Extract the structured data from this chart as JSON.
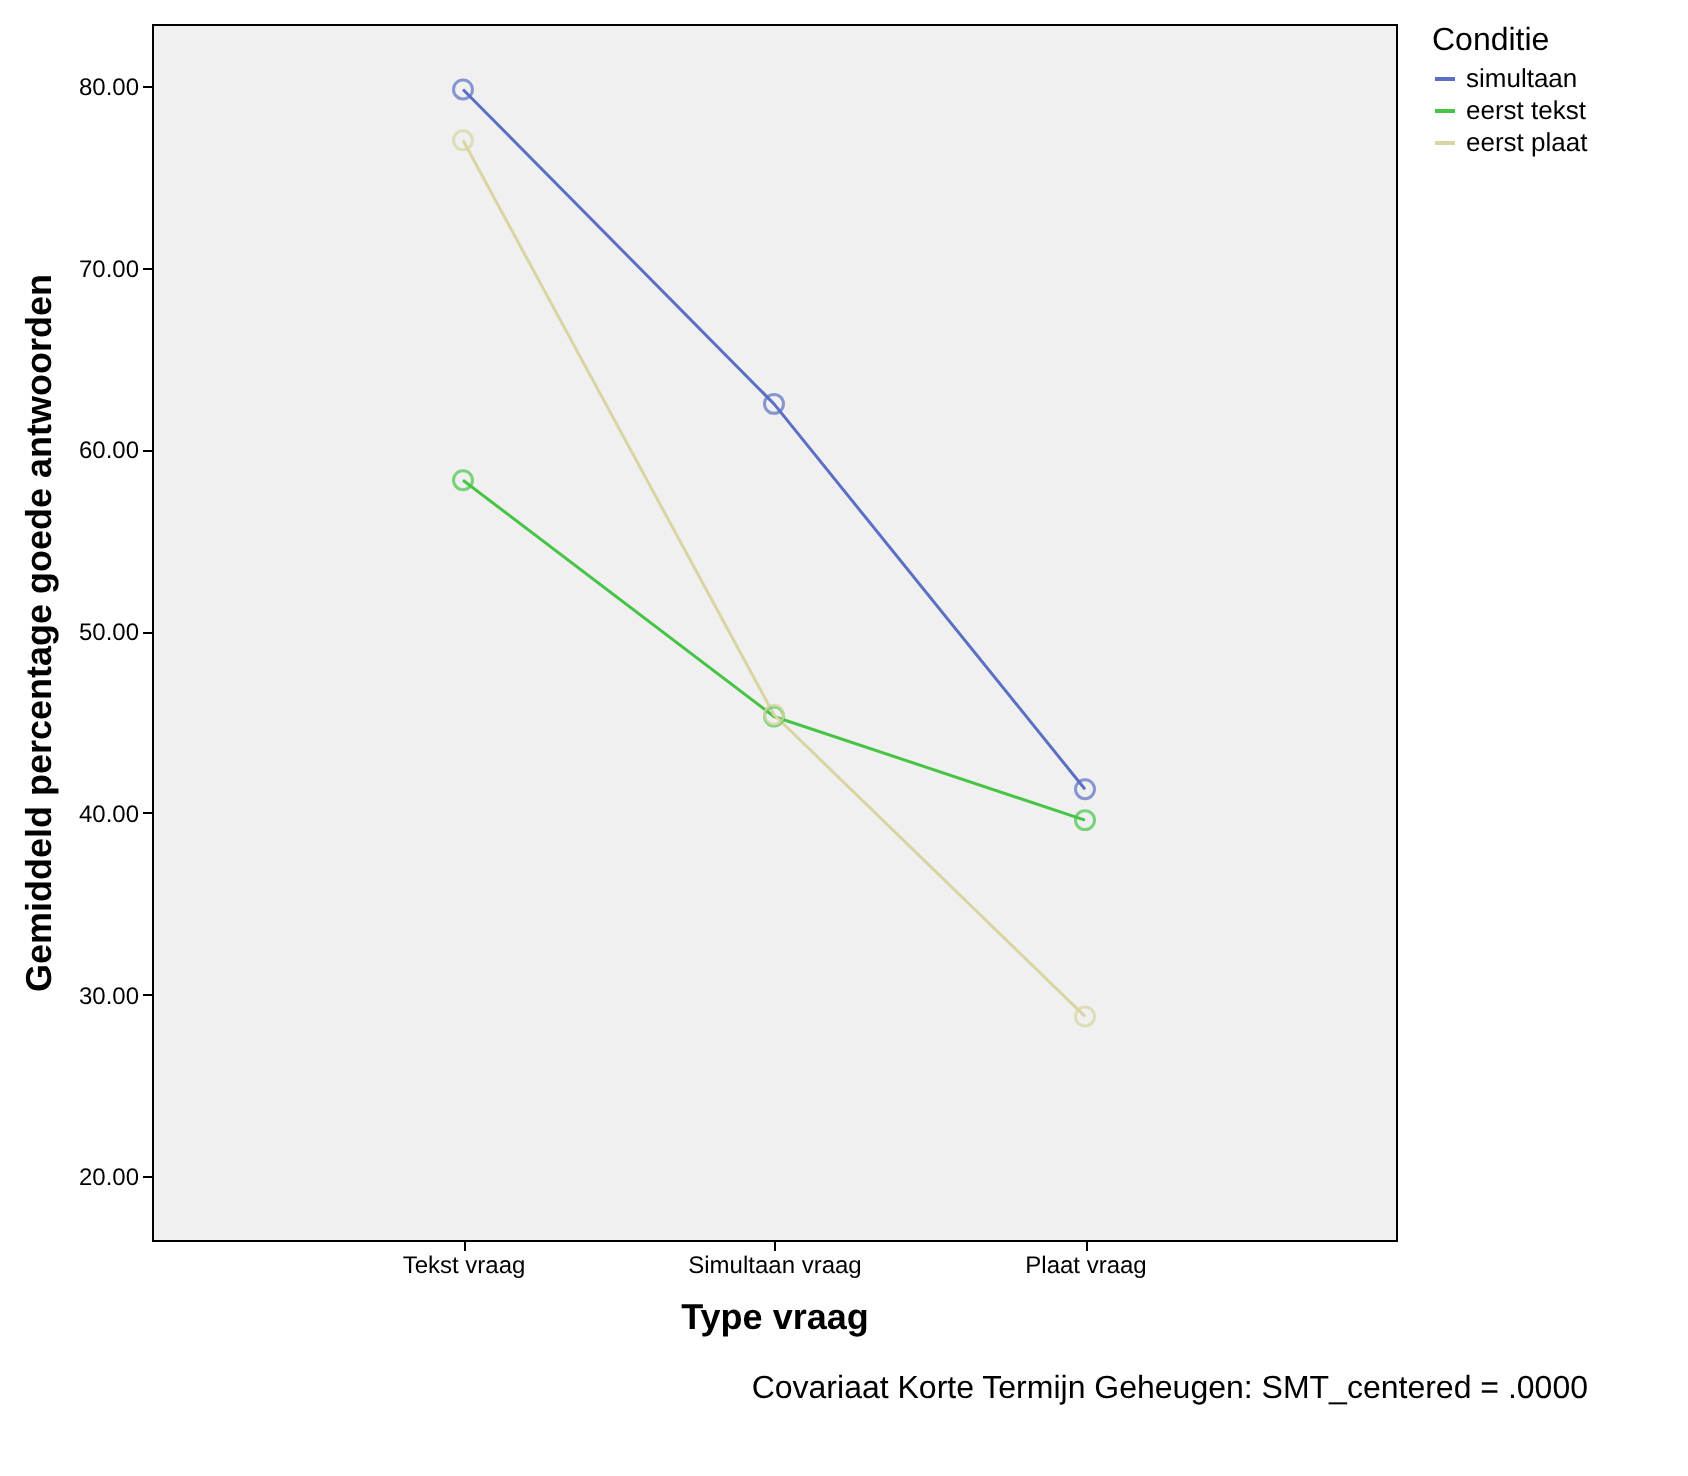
{
  "chart_data": {
    "type": "line",
    "xlabel": "Type vraag",
    "ylabel": "Gemiddeld percentage goede antwoorden",
    "legend_title": "Conditie",
    "legend": "right",
    "marker": "circle",
    "grid": false,
    "categories": [
      "Tekst vraag",
      "Simultaan vraag",
      "Plaat vraag"
    ],
    "ylim": [
      16.5,
      83.4
    ],
    "yticks": [
      {
        "value": 20,
        "label": "20.00"
      },
      {
        "value": 30,
        "label": "30.00"
      },
      {
        "value": 40,
        "label": "40.00"
      },
      {
        "value": 50,
        "label": "50.00"
      },
      {
        "value": 60,
        "label": "60.00"
      },
      {
        "value": 70,
        "label": "70.00"
      },
      {
        "value": 80,
        "label": "80.00"
      }
    ],
    "series": [
      {
        "name": "simultaan",
        "color": "#5b6fc4",
        "values": [
          79.8,
          62.5,
          41.3
        ]
      },
      {
        "name": "eerst tekst",
        "color": "#47c447",
        "values": [
          58.3,
          45.3,
          39.6
        ]
      },
      {
        "name": "eerst plaat",
        "color": "#d9d5a3",
        "values": [
          77.0,
          45.4,
          28.8
        ]
      }
    ],
    "annotations": [
      "Covariaat Korte Termijn Geheugen: SMT_centered = .0000"
    ]
  }
}
